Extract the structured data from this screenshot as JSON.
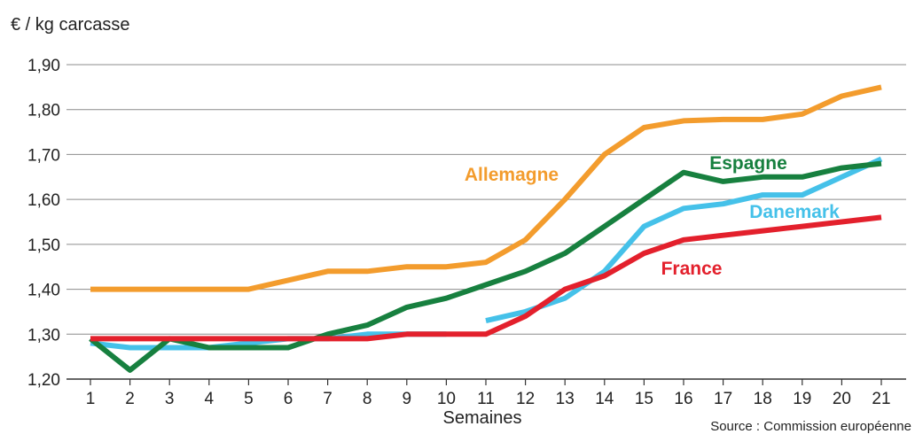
{
  "chart_data": {
    "type": "line",
    "ylabel": "€ / kg carcasse",
    "xlabel": "Semaines",
    "source": "Source : Commission européenne",
    "ylim": [
      1.2,
      1.9
    ],
    "yticks": [
      {
        "value": 1.2,
        "label": "1,20"
      },
      {
        "value": 1.3,
        "label": "1,30"
      },
      {
        "value": 1.4,
        "label": "1,40"
      },
      {
        "value": 1.5,
        "label": "1,50"
      },
      {
        "value": 1.6,
        "label": "1,60"
      },
      {
        "value": 1.7,
        "label": "1,70"
      },
      {
        "value": 1.8,
        "label": "1,80"
      },
      {
        "value": 1.9,
        "label": "1,90"
      }
    ],
    "x": [
      "1",
      "2",
      "3",
      "4",
      "5",
      "6",
      "7",
      "8",
      "9",
      "10",
      "11",
      "12",
      "13",
      "14",
      "15",
      "16",
      "17",
      "18",
      "19",
      "20",
      "21"
    ],
    "grid": true,
    "series": [
      {
        "name": "Allemagne",
        "color": "#f39c2d",
        "values": [
          1.4,
          1.4,
          1.4,
          1.4,
          1.4,
          1.42,
          1.44,
          1.44,
          1.45,
          1.45,
          1.46,
          1.51,
          1.6,
          1.7,
          1.76,
          1.775,
          1.778,
          1.778,
          1.79,
          1.83,
          1.85
        ]
      },
      {
        "name": "Espagne",
        "color": "#17803f",
        "values": [
          1.29,
          1.22,
          1.29,
          1.27,
          1.27,
          1.27,
          1.3,
          1.32,
          1.36,
          1.38,
          1.41,
          1.44,
          1.48,
          1.54,
          1.6,
          1.66,
          1.64,
          1.65,
          1.65,
          1.67,
          1.68
        ]
      },
      {
        "name": "Danemark",
        "color": "#45c1e9",
        "values": [
          1.28,
          1.27,
          1.27,
          1.27,
          1.28,
          1.29,
          1.29,
          1.3,
          1.3,
          1.3,
          null,
          1.35,
          1.38,
          1.44,
          1.54,
          1.58,
          1.59,
          1.61,
          1.61,
          1.65,
          1.69
        ],
        "segments": [
          [
            0,
            9
          ],
          [
            10,
            20
          ]
        ],
        "values_segment2_start": 1.33
      },
      {
        "name": "France",
        "color": "#e3202c",
        "values": [
          1.29,
          1.29,
          1.29,
          1.29,
          1.29,
          1.29,
          1.29,
          1.29,
          1.3,
          1.3,
          1.3,
          1.34,
          1.4,
          1.43,
          1.48,
          1.51,
          1.52,
          1.53,
          1.54,
          1.55,
          1.56
        ]
      }
    ]
  }
}
